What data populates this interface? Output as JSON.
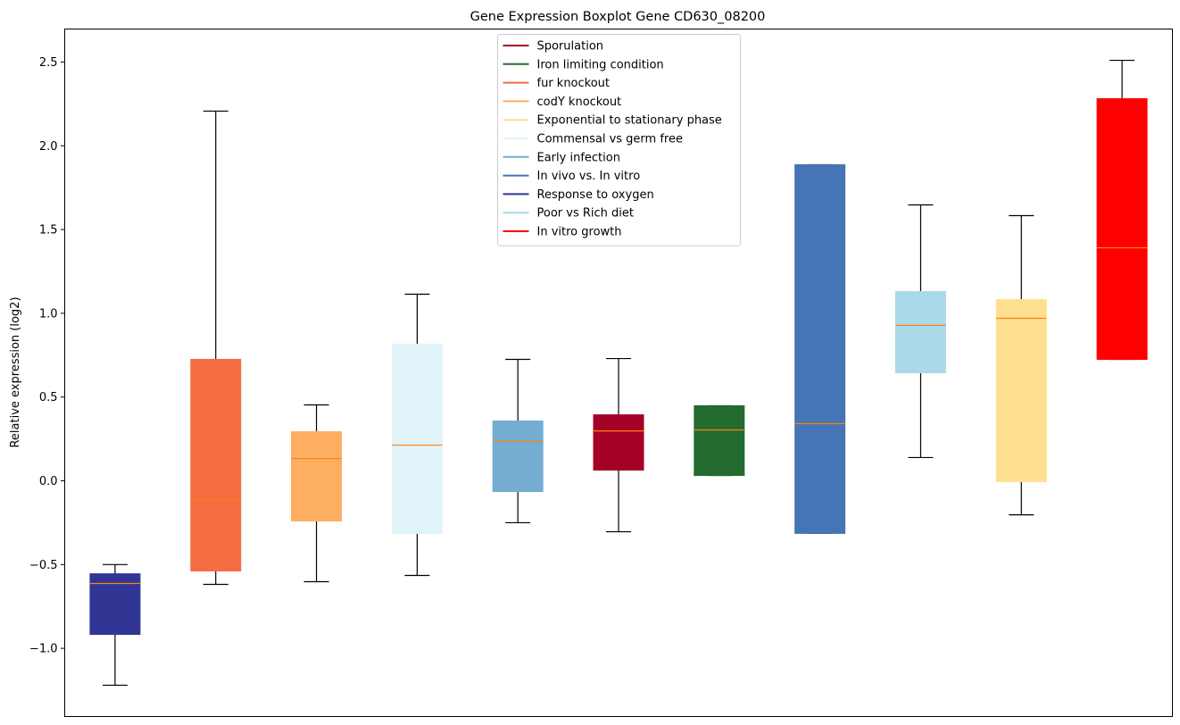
{
  "chart_data": {
    "type": "boxplot",
    "title": "Gene Expression Boxplot Gene CD630_08200",
    "xlabel": "",
    "ylabel": "Relative expression (log2)",
    "ylim": [
      -1.407,
      2.697
    ],
    "yticks": [
      -1.0,
      -0.5,
      0.0,
      0.5,
      1.0,
      1.5,
      2.0,
      2.5
    ],
    "ytick_labels": [
      "−1.0",
      "−0.5",
      "0.0",
      "0.5",
      "1.0",
      "1.5",
      "2.0",
      "2.5"
    ],
    "grid": false,
    "legend_position": "upper-center",
    "median_color": "#ff7f0e",
    "boxes": [
      {
        "name": "Response to oxygen",
        "color": "#313695",
        "whisker_low": -1.22,
        "q1": -0.917,
        "median": -0.613,
        "q3": -0.555,
        "whisker_high": -0.5
      },
      {
        "name": "fur knockout",
        "color": "#f46d43",
        "whisker_low": -0.618,
        "q1": -0.538,
        "median": -0.117,
        "q3": 0.725,
        "whisker_high": 2.207
      },
      {
        "name": "codY knockout",
        "color": "#fdae61",
        "whisker_low": -0.602,
        "q1": -0.24,
        "median": 0.133,
        "q3": 0.293,
        "whisker_high": 0.453
      },
      {
        "name": "Commensal vs germ free",
        "color": "#e0f3f8",
        "whisker_low": -0.565,
        "q1": -0.314,
        "median": 0.213,
        "q3": 0.816,
        "whisker_high": 1.114
      },
      {
        "name": "Early infection",
        "color": "#74add1",
        "whisker_low": -0.25,
        "q1": -0.064,
        "median": 0.235,
        "q3": 0.357,
        "whisker_high": 0.725
      },
      {
        "name": "Sporulation",
        "color": "#a50026",
        "whisker_low": -0.304,
        "q1": 0.064,
        "median": 0.298,
        "q3": 0.394,
        "whisker_high": 0.73
      },
      {
        "name": "Iron limiting condition",
        "color": "#236b2e",
        "whisker_low": 0.032,
        "q1": 0.032,
        "median": 0.304,
        "q3": 0.448,
        "whisker_high": 0.448
      },
      {
        "name": "In vivo vs. In vitro",
        "color": "#4575b4",
        "whisker_low": -0.314,
        "q1": -0.314,
        "median": 0.341,
        "q3": 1.887,
        "whisker_high": 1.887
      },
      {
        "name": "Poor vs Rich diet",
        "color": "#abd9e9",
        "whisker_low": 0.139,
        "q1": 0.645,
        "median": 0.928,
        "q3": 1.13,
        "whisker_high": 1.647
      },
      {
        "name": "Exponential to stationary phase",
        "color": "#fee090",
        "whisker_low": -0.203,
        "q1": -0.005,
        "median": 0.97,
        "q3": 1.082,
        "whisker_high": 1.583
      },
      {
        "name": "In vitro growth",
        "color": "#ff0000",
        "whisker_low": 0.725,
        "q1": 0.725,
        "median": 1.391,
        "q3": 2.281,
        "whisker_high": 2.51
      }
    ],
    "legend": [
      {
        "label": "Sporulation",
        "color": "#a50026"
      },
      {
        "label": "Iron limiting condition",
        "color": "#236b2e"
      },
      {
        "label": "fur knockout",
        "color": "#f46d43"
      },
      {
        "label": "codY knockout",
        "color": "#fdae61"
      },
      {
        "label": "Exponential to stationary phase",
        "color": "#fee090"
      },
      {
        "label": "Commensal vs germ free",
        "color": "#e0f3f8"
      },
      {
        "label": "Early infection",
        "color": "#74add1"
      },
      {
        "label": "In vivo vs. In vitro",
        "color": "#4575b4"
      },
      {
        "label": "Response to oxygen",
        "color": "#313695"
      },
      {
        "label": "Poor vs Rich diet",
        "color": "#abd9e9"
      },
      {
        "label": "In vitro growth",
        "color": "#ff0000"
      }
    ]
  }
}
